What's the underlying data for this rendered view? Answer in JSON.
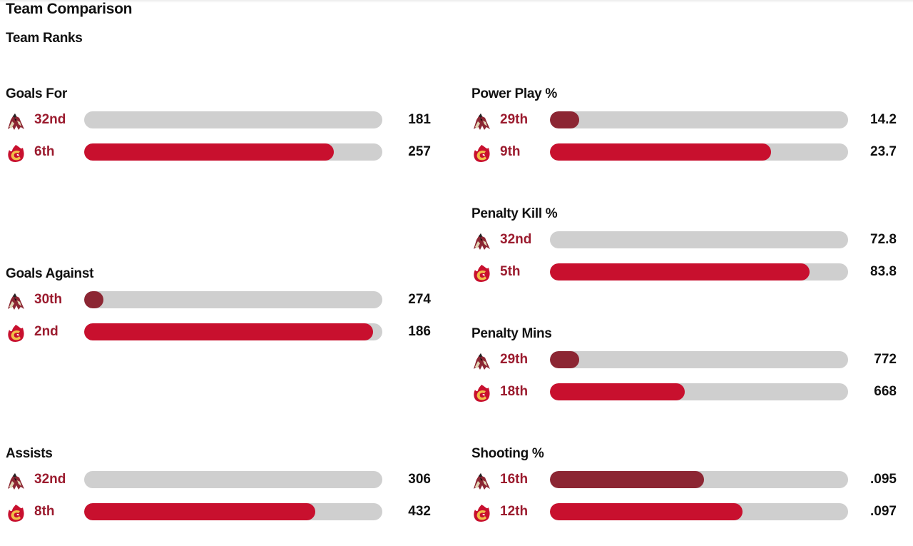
{
  "header": {
    "title": "Team Comparison",
    "subtitle": "Team Ranks"
  },
  "colors": {
    "coyotes": "#8c2633",
    "flames": "#c8102e",
    "track": "#cfcfcf",
    "rank_text": "#9b1b2e"
  },
  "icons": {
    "coyotes": "coyotes-logo-icon",
    "flames": "flames-logo-icon"
  },
  "stats": [
    {
      "id": "goals-for",
      "title": "Goals For",
      "rows": [
        {
          "team": "coyotes",
          "rank": "32nd",
          "value": "181",
          "fill": 0.0
        },
        {
          "team": "flames",
          "rank": "6th",
          "value": "257",
          "fill": 0.838
        }
      ]
    },
    {
      "id": "goals-against",
      "title": "Goals Against",
      "rows": [
        {
          "team": "coyotes",
          "rank": "30th",
          "value": "274",
          "fill": 0.065
        },
        {
          "team": "flames",
          "rank": "2nd",
          "value": "186",
          "fill": 0.968
        }
      ]
    },
    {
      "id": "assists",
      "title": "Assists",
      "rows": [
        {
          "team": "coyotes",
          "rank": "32nd",
          "value": "306",
          "fill": 0.0
        },
        {
          "team": "flames",
          "rank": "8th",
          "value": "432",
          "fill": 0.774
        }
      ]
    },
    {
      "id": "power-play",
      "title": "Power Play %",
      "rows": [
        {
          "team": "coyotes",
          "rank": "29th",
          "value": "14.2",
          "fill": 0.097
        },
        {
          "team": "flames",
          "rank": "9th",
          "value": "23.7",
          "fill": 0.742
        }
      ]
    },
    {
      "id": "penalty-kill",
      "title": "Penalty Kill %",
      "rows": [
        {
          "team": "coyotes",
          "rank": "32nd",
          "value": "72.8",
          "fill": 0.0
        },
        {
          "team": "flames",
          "rank": "5th",
          "value": "83.8",
          "fill": 0.871
        }
      ]
    },
    {
      "id": "penalty-mins",
      "title": "Penalty Mins",
      "rows": [
        {
          "team": "coyotes",
          "rank": "29th",
          "value": "772",
          "fill": 0.097
        },
        {
          "team": "flames",
          "rank": "18th",
          "value": "668",
          "fill": 0.452
        }
      ]
    },
    {
      "id": "shooting",
      "title": "Shooting %",
      "rows": [
        {
          "team": "coyotes",
          "rank": "16th",
          "value": ".095",
          "fill": 0.516
        },
        {
          "team": "flames",
          "rank": "12th",
          "value": ".097",
          "fill": 0.645
        }
      ]
    }
  ]
}
